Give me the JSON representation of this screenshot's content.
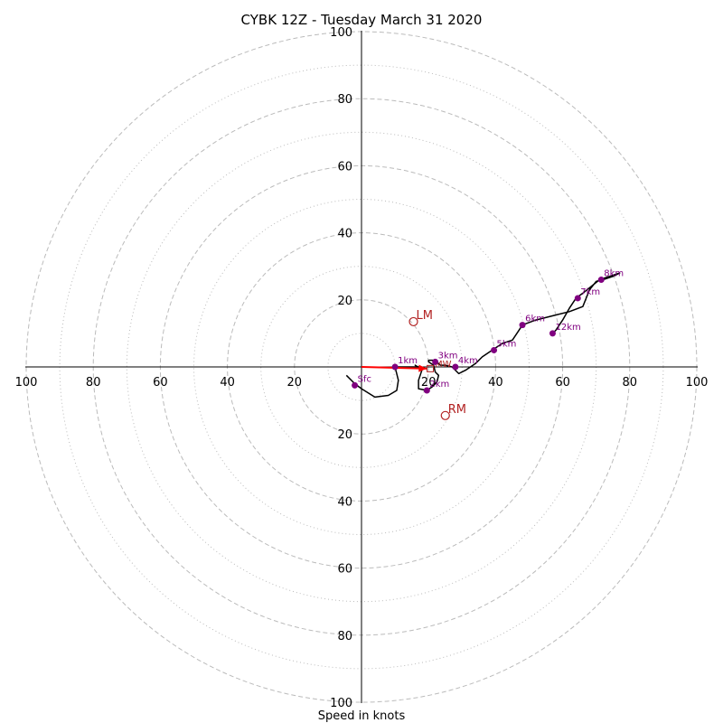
{
  "chart_data": {
    "type": "hodograph",
    "title": "CYBK 12Z - Tuesday March 31 2020",
    "xlabel": "Speed in knots",
    "range": [
      -100,
      100
    ],
    "ring_major": [
      20,
      40,
      60,
      80,
      100
    ],
    "ring_minor": [
      10,
      30,
      50,
      70,
      90
    ],
    "x_tick_labels": [
      "100",
      "80",
      "60",
      "40",
      "20",
      "20",
      "40",
      "60",
      "80",
      "100"
    ],
    "x_tick_values": [
      -100,
      -80,
      -60,
      -40,
      -20,
      20,
      40,
      60,
      80,
      100
    ],
    "y_tick_labels": [
      "100",
      "80",
      "60",
      "40",
      "20",
      "20",
      "40",
      "60",
      "80",
      "100"
    ],
    "y_tick_values": [
      100,
      80,
      60,
      40,
      20,
      -20,
      -40,
      -60,
      -80,
      -100
    ],
    "grid": true,
    "colors": {
      "trace": "#000000",
      "height_marker": "#800080",
      "storm_motion": "#b22222",
      "shear_vector": "#ff0000",
      "ring_grid": "#bbbbbb"
    },
    "trace": [
      [
        -4.5,
        -2.5
      ],
      [
        -2,
        -5
      ],
      [
        0,
        -6.5
      ],
      [
        4,
        -9
      ],
      [
        8,
        -8.5
      ],
      [
        10.5,
        -7
      ],
      [
        11,
        -4
      ],
      [
        10,
        0
      ],
      [
        12.5,
        0
      ],
      [
        15,
        0
      ],
      [
        17,
        0
      ],
      [
        16.5,
        0.2
      ],
      [
        16,
        0.5
      ],
      [
        16.8,
        0
      ],
      [
        18,
        -1
      ],
      [
        17,
        -4
      ],
      [
        17,
        -6.5
      ],
      [
        19.5,
        -7
      ],
      [
        21,
        -6
      ],
      [
        22.5,
        -4.5
      ],
      [
        23,
        -2.5
      ],
      [
        22,
        -1.5
      ],
      [
        21.5,
        0.5
      ],
      [
        20,
        1.5
      ],
      [
        20,
        2
      ],
      [
        22,
        2
      ],
      [
        23.5,
        0.5
      ],
      [
        25,
        0.5
      ],
      [
        27,
        0
      ],
      [
        29,
        -2
      ],
      [
        31,
        -1
      ],
      [
        34,
        1
      ],
      [
        36,
        3
      ],
      [
        39,
        5
      ],
      [
        42,
        7
      ],
      [
        45,
        8
      ],
      [
        47,
        11
      ],
      [
        48,
        12.5
      ],
      [
        52,
        14
      ],
      [
        58,
        15.5
      ],
      [
        62,
        16.5
      ],
      [
        66,
        18
      ],
      [
        68,
        23
      ],
      [
        70,
        25.5
      ],
      [
        72,
        26
      ],
      [
        75,
        27
      ],
      [
        77,
        28
      ],
      [
        71,
        26
      ],
      [
        66,
        22
      ],
      [
        64,
        20.5
      ],
      [
        62,
        17.5
      ],
      [
        60,
        14
      ],
      [
        58,
        11
      ],
      [
        57,
        10
      ]
    ],
    "height_markers": [
      {
        "label": "Sfc",
        "u": -2,
        "v": -5.5
      },
      {
        "label": "1km",
        "u": 10,
        "v": 0
      },
      {
        "label": "2km",
        "u": 19.5,
        "v": -7
      },
      {
        "label": "3km",
        "u": 22,
        "v": 1.5
      },
      {
        "label": "4km",
        "u": 28,
        "v": 0
      },
      {
        "label": "5km",
        "u": 39.5,
        "v": 5
      },
      {
        "label": "6km",
        "u": 48,
        "v": 12.5
      },
      {
        "label": "7km",
        "u": 64.5,
        "v": 20.5
      },
      {
        "label": "8km",
        "u": 71.5,
        "v": 26
      },
      {
        "label": "12km",
        "u": 57,
        "v": 10
      }
    ],
    "storm_motion": [
      {
        "label": "LM",
        "u": 15.5,
        "v": 13.5
      },
      {
        "label": "RM",
        "u": 25,
        "v": -14.5
      }
    ],
    "mean_wind": {
      "label": "MW",
      "u": 20.5,
      "v": -0.5
    },
    "shear_vector": {
      "from": [
        0,
        0
      ],
      "to": [
        19.5,
        -0.5
      ]
    }
  }
}
